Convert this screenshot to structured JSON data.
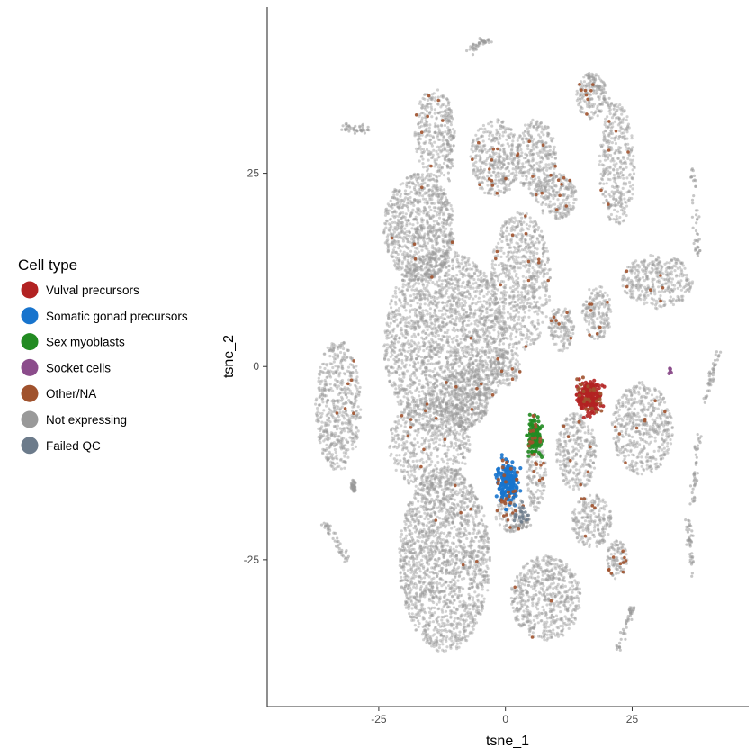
{
  "chart_data": {
    "type": "scatter",
    "xlabel": "tsne_1",
    "ylabel": "tsne_2",
    "xlim": [
      -47,
      48
    ],
    "ylim": [
      -44,
      46.5
    ],
    "xticks": [
      -25,
      0,
      25
    ],
    "yticks": [
      -25,
      0,
      25
    ],
    "legend": {
      "title": "Cell type",
      "placement": "left",
      "entries": [
        {
          "label": "Vulval precursors",
          "color": "#B22222"
        },
        {
          "label": "Somatic gonad precursors",
          "color": "#1874CD"
        },
        {
          "label": "Sex myoblasts",
          "color": "#228B22"
        },
        {
          "label": "Socket cells",
          "color": "#8B4C8B"
        },
        {
          "label": "Other/NA",
          "color": "#A0522D"
        },
        {
          "label": "Not expressing",
          "color": "#999999"
        },
        {
          "label": "Failed QC",
          "color": "#6C7B8B"
        }
      ]
    },
    "background_clusters": [
      {
        "cx": -33,
        "cy": -5,
        "rx": 4.5,
        "ry": 8.5,
        "n": 550
      },
      {
        "cx": -17,
        "cy": 18,
        "rx": 7,
        "ry": 7,
        "n": 900
      },
      {
        "cx": -12,
        "cy": 3,
        "rx": 12,
        "ry": 12,
        "n": 2200
      },
      {
        "cx": -15,
        "cy": -10,
        "rx": 8,
        "ry": 6,
        "n": 500
      },
      {
        "cx": -12,
        "cy": -25,
        "rx": 9,
        "ry": 12,
        "n": 1800
      },
      {
        "cx": -14,
        "cy": 30,
        "rx": 4,
        "ry": 6,
        "n": 300
      },
      {
        "cx": -2,
        "cy": 27,
        "rx": 5,
        "ry": 5,
        "n": 380
      },
      {
        "cx": 6,
        "cy": 27,
        "rx": 4,
        "ry": 5,
        "n": 300
      },
      {
        "cx": 10,
        "cy": 22,
        "rx": 4,
        "ry": 3,
        "n": 200
      },
      {
        "cx": 17,
        "cy": 35,
        "rx": 3,
        "ry": 3,
        "n": 150
      },
      {
        "cx": 22,
        "cy": 26,
        "rx": 3.5,
        "ry": 8,
        "n": 350
      },
      {
        "cx": 30,
        "cy": 11,
        "rx": 7,
        "ry": 3.5,
        "n": 350
      },
      {
        "cx": 3,
        "cy": 11,
        "rx": 6,
        "ry": 9,
        "n": 700
      },
      {
        "cx": 18,
        "cy": 7,
        "rx": 3,
        "ry": 3.5,
        "n": 170
      },
      {
        "cx": 6,
        "cy": -14,
        "rx": 2,
        "ry": 5,
        "n": 130
      },
      {
        "cx": 14,
        "cy": -11,
        "rx": 4,
        "ry": 5,
        "n": 300
      },
      {
        "cx": 27,
        "cy": -8,
        "rx": 6,
        "ry": 6,
        "n": 500
      },
      {
        "cx": 17,
        "cy": -20,
        "rx": 4,
        "ry": 3.5,
        "n": 220
      },
      {
        "cx": 8,
        "cy": -30,
        "rx": 7,
        "ry": 5.5,
        "n": 600
      },
      {
        "cx": 22,
        "cy": -25,
        "rx": 2,
        "ry": 2.5,
        "n": 100
      },
      {
        "cx": 1,
        "cy": -19,
        "rx": 3,
        "ry": 2.5,
        "n": 90
      },
      {
        "cx": -8,
        "cy": -4,
        "rx": 5,
        "ry": 4,
        "n": 300
      },
      {
        "cx": 0,
        "cy": 0,
        "rx": 3,
        "ry": 2.5,
        "n": 150
      },
      {
        "cx": 11,
        "cy": 5,
        "rx": 2.5,
        "ry": 3,
        "n": 130
      }
    ],
    "highlight_clusters": [
      {
        "cx": 16.5,
        "cy": -4,
        "rx": 2.2,
        "ry": 2.0,
        "n": 220,
        "color": "#B22222"
      },
      {
        "cx": 0.5,
        "cy": -15,
        "rx": 2.0,
        "ry": 2.6,
        "n": 180,
        "color": "#1874CD"
      },
      {
        "cx": 5.8,
        "cy": -9,
        "rx": 1.3,
        "ry": 2.6,
        "n": 130,
        "color": "#228B22"
      },
      {
        "cx": 32.5,
        "cy": -0.5,
        "rx": 0.5,
        "ry": 0.6,
        "n": 6,
        "color": "#8B4C8B"
      }
    ],
    "scattered_points": {
      "n": 170,
      "color": "#A0522D"
    }
  }
}
